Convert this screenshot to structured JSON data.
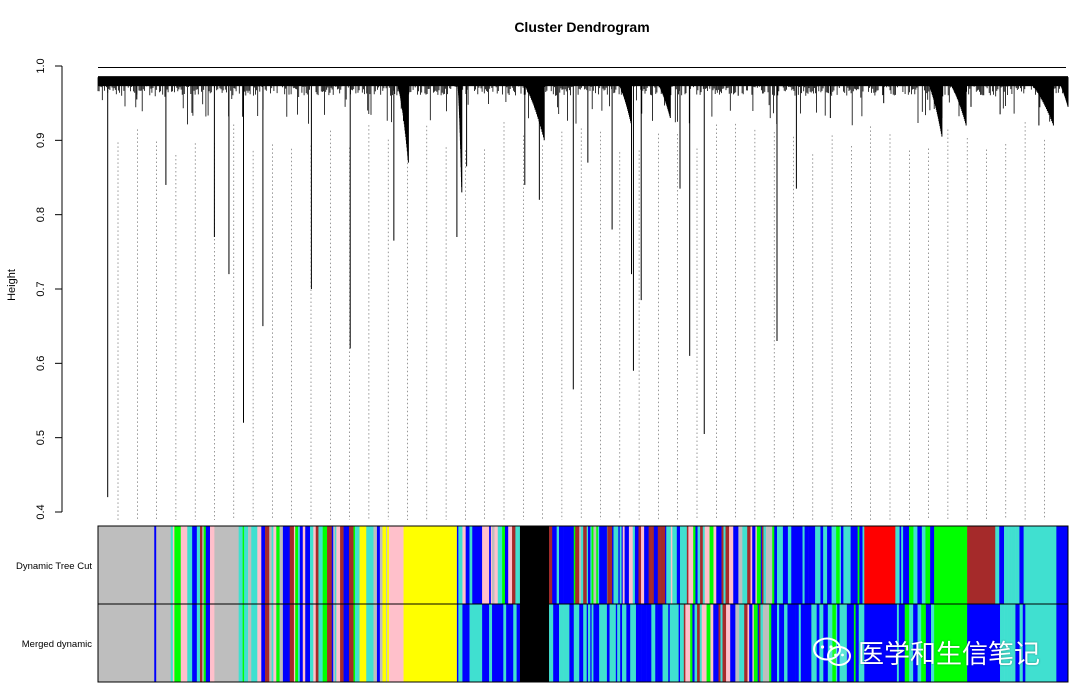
{
  "chart_data": {
    "type": "dendrogram",
    "title": "Cluster Dendrogram",
    "ylabel": "Height",
    "xlabel": "",
    "ylim": [
      0.4,
      1.0
    ],
    "yticks": [
      0.4,
      0.5,
      0.6,
      0.7,
      0.8,
      0.9,
      1.0
    ],
    "ytick_labels": [
      "0.4",
      "0.5",
      "0.6",
      "0.7",
      "0.8",
      "0.9",
      "1.0"
    ],
    "grid": false,
    "tree_top_height": 0.985,
    "deep_branches": [
      {
        "x": 0.01,
        "height": 0.42
      },
      {
        "x": 0.04,
        "height": 0.955
      },
      {
        "x": 0.07,
        "height": 0.84
      },
      {
        "x": 0.12,
        "height": 0.77
      },
      {
        "x": 0.135,
        "height": 0.72
      },
      {
        "x": 0.15,
        "height": 0.52
      },
      {
        "x": 0.17,
        "height": 0.65
      },
      {
        "x": 0.22,
        "height": 0.7
      },
      {
        "x": 0.26,
        "height": 0.62
      },
      {
        "x": 0.305,
        "height": 0.765
      },
      {
        "x": 0.38,
        "height": 0.865
      },
      {
        "x": 0.37,
        "height": 0.77
      },
      {
        "x": 0.44,
        "height": 0.84
      },
      {
        "x": 0.455,
        "height": 0.82
      },
      {
        "x": 0.49,
        "height": 0.565
      },
      {
        "x": 0.505,
        "height": 0.87
      },
      {
        "x": 0.53,
        "height": 0.78
      },
      {
        "x": 0.55,
        "height": 0.72
      },
      {
        "x": 0.552,
        "height": 0.59
      },
      {
        "x": 0.56,
        "height": 0.685
      },
      {
        "x": 0.6,
        "height": 0.835
      },
      {
        "x": 0.61,
        "height": 0.61
      },
      {
        "x": 0.625,
        "height": 0.505
      },
      {
        "x": 0.66,
        "height": 0.96
      },
      {
        "x": 0.7,
        "height": 0.63
      },
      {
        "x": 0.72,
        "height": 0.835
      },
      {
        "x": 0.755,
        "height": 0.93
      },
      {
        "x": 0.81,
        "height": 0.95
      },
      {
        "x": 0.87,
        "height": 0.93
      },
      {
        "x": 0.9,
        "height": 0.945
      },
      {
        "x": 0.93,
        "height": 0.935
      },
      {
        "x": 0.97,
        "height": 0.92
      }
    ],
    "module_bars": [
      {
        "label": "Dynamic Tree Cut",
        "segments": [
          [
            0.0,
            0.058,
            "#bebebe"
          ],
          [
            0.058,
            0.06,
            "#0000ff"
          ],
          [
            0.06,
            0.075,
            "#bebebe"
          ],
          [
            0.075,
            0.12,
            "mixed"
          ],
          [
            0.12,
            0.145,
            "#bebebe"
          ],
          [
            0.145,
            0.265,
            "mixed"
          ],
          [
            0.265,
            0.3,
            "mixed-yellow"
          ],
          [
            0.3,
            0.315,
            "#ffc0cb"
          ],
          [
            0.315,
            0.37,
            "#ffff00"
          ],
          [
            0.37,
            0.405,
            "mixed-red"
          ],
          [
            0.405,
            0.435,
            "mixed"
          ],
          [
            0.435,
            0.465,
            "#000000"
          ],
          [
            0.465,
            0.525,
            "mixed"
          ],
          [
            0.525,
            0.53,
            "#a52a2a"
          ],
          [
            0.53,
            0.6,
            "mixed-red"
          ],
          [
            0.6,
            0.7,
            "mixed"
          ],
          [
            0.7,
            0.79,
            "mixed-cyan"
          ],
          [
            0.79,
            0.822,
            "#ff0000"
          ],
          [
            0.822,
            0.862,
            "mixed-cyan"
          ],
          [
            0.862,
            0.896,
            "#00ff00"
          ],
          [
            0.896,
            0.925,
            "#a52a2a"
          ],
          [
            0.925,
            0.956,
            "mixed-cyan"
          ],
          [
            0.956,
            0.988,
            "#40e0d0"
          ],
          [
            0.988,
            1.0,
            "#0000ff"
          ]
        ]
      },
      {
        "label": "Merged dynamic",
        "segments": [
          [
            0.0,
            0.058,
            "#bebebe"
          ],
          [
            0.058,
            0.06,
            "#0000ff"
          ],
          [
            0.06,
            0.075,
            "#bebebe"
          ],
          [
            0.075,
            0.12,
            "mixed"
          ],
          [
            0.12,
            0.145,
            "#bebebe"
          ],
          [
            0.145,
            0.265,
            "mixed"
          ],
          [
            0.265,
            0.3,
            "mixed-yellow"
          ],
          [
            0.3,
            0.315,
            "#ffc0cb"
          ],
          [
            0.315,
            0.37,
            "#ffff00"
          ],
          [
            0.37,
            0.435,
            "mixed-blue"
          ],
          [
            0.435,
            0.465,
            "#000000"
          ],
          [
            0.465,
            0.6,
            "mixed-blue"
          ],
          [
            0.6,
            0.7,
            "mixed"
          ],
          [
            0.7,
            0.79,
            "mixed-cyan"
          ],
          [
            0.79,
            0.822,
            "#0000ff"
          ],
          [
            0.822,
            0.862,
            "mixed-cyan"
          ],
          [
            0.862,
            0.896,
            "#00ff00"
          ],
          [
            0.896,
            0.925,
            "#0000ff"
          ],
          [
            0.925,
            0.956,
            "mixed-cyan"
          ],
          [
            0.956,
            0.988,
            "#40e0d0"
          ],
          [
            0.988,
            1.0,
            "#0000ff"
          ]
        ]
      }
    ],
    "colors": {
      "grey": "#bebebe",
      "blue": "#0000ff",
      "turquoise": "#40e0d0",
      "yellow": "#ffff00",
      "pink": "#ffc0cb",
      "black": "#000000",
      "red": "#ff0000",
      "green": "#00ff00",
      "brown": "#a52a2a"
    }
  },
  "watermark": {
    "text": "医学和生信笔记",
    "icon": "wechat-icon"
  }
}
